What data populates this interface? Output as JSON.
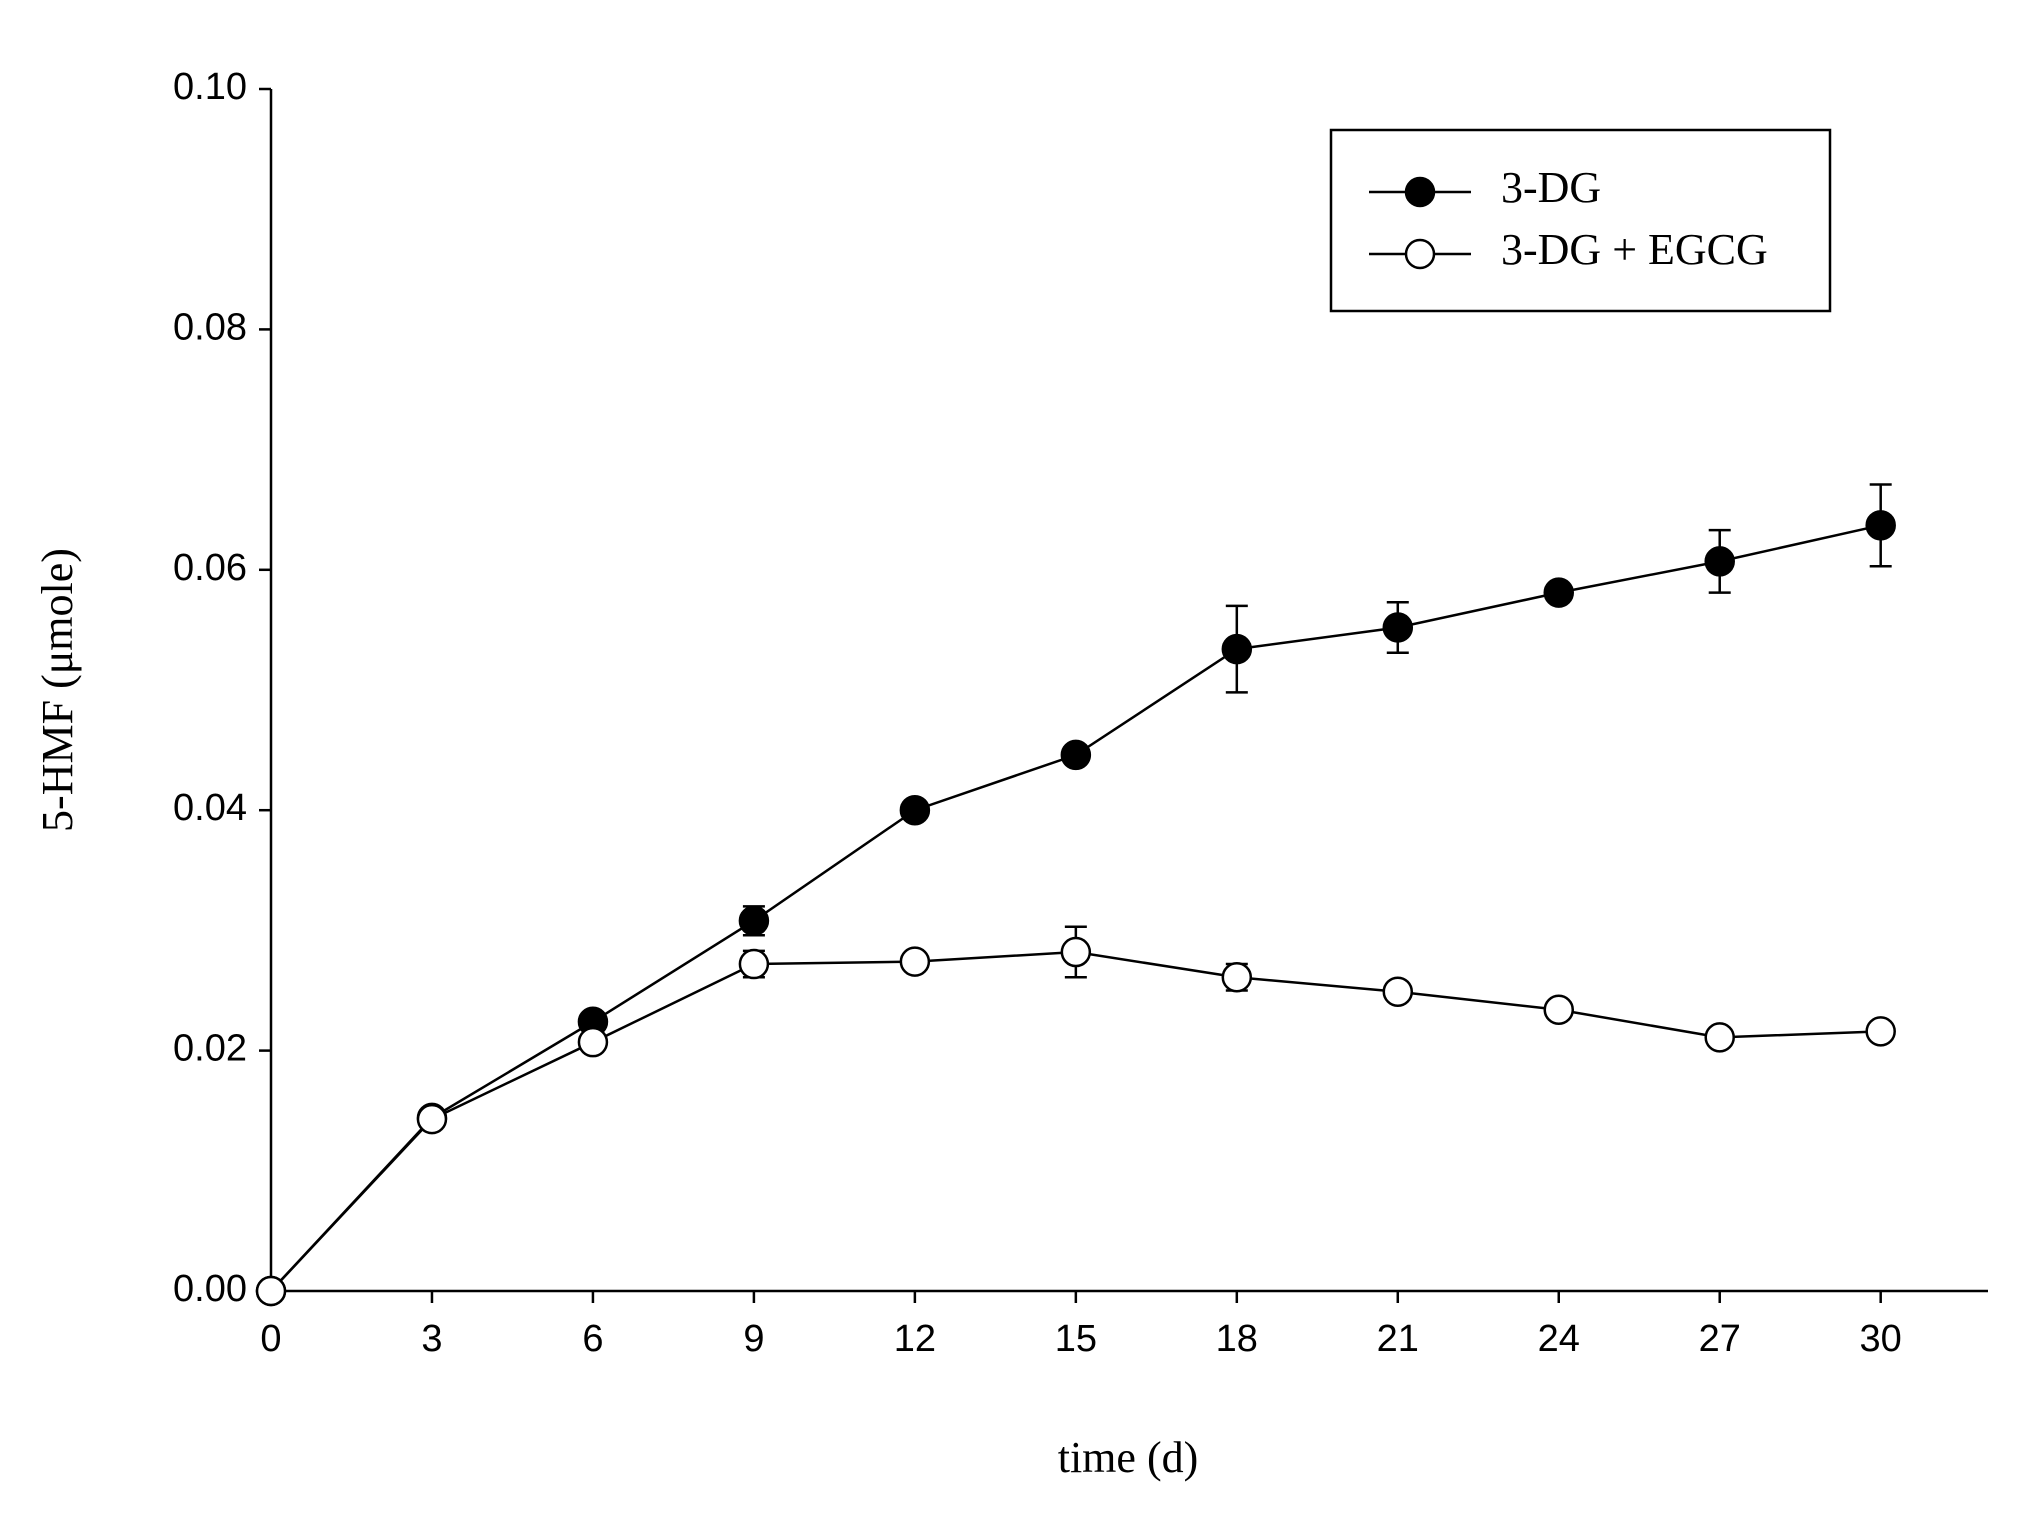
{
  "chart_data": {
    "type": "line",
    "x_label": "time (d)",
    "y_label": "5-HMF (μmole)",
    "x": [
      0,
      3,
      6,
      9,
      12,
      15,
      18,
      21,
      24,
      27,
      30
    ],
    "series": [
      {
        "name": "3-DG",
        "color": "#000000",
        "marker": "filled",
        "values": [
          0,
          0.0144,
          0.0224,
          0.0308,
          0.04,
          0.0446,
          0.0534,
          0.0552,
          0.0581,
          0.0607,
          0.0637
        ],
        "errors": [
          0.0002,
          0.0003,
          0.0004,
          0.0012,
          0.0005,
          0.0005,
          0.0036,
          0.0021,
          0.0004,
          0.0026,
          0.0034
        ]
      },
      {
        "name": "3-DG + EGCG",
        "color": "#000000",
        "marker": "open",
        "values": [
          0,
          0.0143,
          0.0207,
          0.0272,
          0.0274,
          0.0282,
          0.0261,
          0.0249,
          0.0234,
          0.0211,
          0.0216
        ],
        "errors": [
          0.0002,
          0.0003,
          0.0005,
          0.0011,
          0.0004,
          0.0021,
          0.0011,
          0.0004,
          0.0003,
          0.0004,
          0.0004
        ]
      }
    ],
    "xlim": [
      0,
      32
    ],
    "xticks": [
      0,
      3,
      6,
      9,
      12,
      15,
      18,
      21,
      24,
      27,
      30
    ],
    "ylim": [
      0,
      0.1
    ],
    "yticks": [
      {
        "value": 0,
        "label": "0.00"
      },
      {
        "value": 0.02,
        "label": "0.02"
      },
      {
        "value": 0.04,
        "label": "0.04"
      },
      {
        "value": 0.06,
        "label": "0.06"
      },
      {
        "value": 0.08,
        "label": "0.08"
      },
      {
        "value": 0.1,
        "label": "0.10"
      }
    ],
    "legend": "upper right",
    "grid": false
  }
}
